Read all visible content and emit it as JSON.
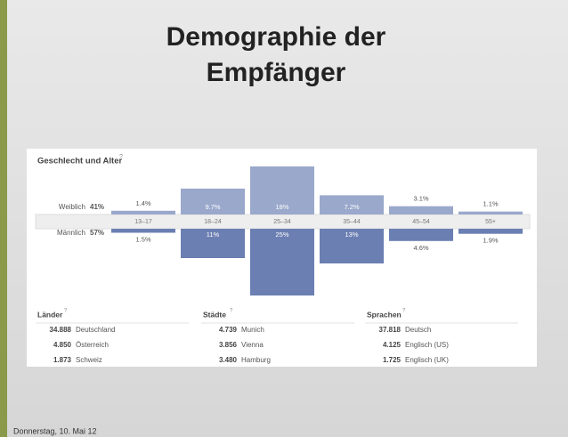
{
  "slide_title": "Demographie der Empfänger",
  "footer": "Donnerstag, 10. Mai 12",
  "chart_data": {
    "type": "butterfly-bar",
    "title": "Geschlecht und Alter",
    "help": "?",
    "categories": [
      "13–17",
      "18–24",
      "25–34",
      "35–44",
      "45–54",
      "55+"
    ],
    "series": [
      {
        "name": "Weiblich",
        "total": 41,
        "total_label": "41%",
        "color": "#9aa8cb",
        "values": [
          1.4,
          9.7,
          18,
          7.2,
          3.1,
          1.1
        ],
        "value_labels": [
          "1.4%",
          "9.7%",
          "18%",
          "7.2%",
          "3.1%",
          "1.1%"
        ]
      },
      {
        "name": "Männlich",
        "total": 57,
        "total_label": "57%",
        "color": "#6b7fb2",
        "values": [
          1.5,
          11,
          25,
          13,
          4.6,
          1.9
        ],
        "value_labels": [
          "1.5%",
          "11%",
          "25%",
          "13%",
          "4.6%",
          "1.9%"
        ]
      }
    ]
  },
  "tables": [
    {
      "title": "Länder",
      "help": "?",
      "rows": [
        [
          "34.888",
          "Deutschland"
        ],
        [
          "4.850",
          "Österreich"
        ],
        [
          "1.873",
          "Schweiz"
        ]
      ]
    },
    {
      "title": "Städte",
      "help": "?",
      "rows": [
        [
          "4.739",
          "Munich"
        ],
        [
          "3.856",
          "Vienna"
        ],
        [
          "3.480",
          "Hamburg"
        ]
      ]
    },
    {
      "title": "Sprachen",
      "help": "?",
      "rows": [
        [
          "37.818",
          "Deutsch"
        ],
        [
          "4.125",
          "Englisch (US)"
        ],
        [
          "1.725",
          "Englisch (UK)"
        ]
      ]
    }
  ]
}
